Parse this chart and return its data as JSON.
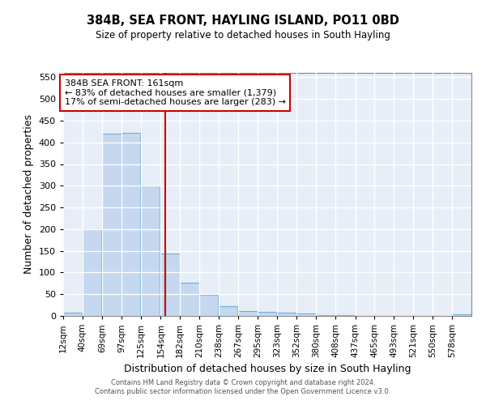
{
  "title": "384B, SEA FRONT, HAYLING ISLAND, PO11 0BD",
  "subtitle": "Size of property relative to detached houses in South Hayling",
  "xlabel": "Distribution of detached houses by size in South Hayling",
  "ylabel": "Number of detached properties",
  "footer1": "Contains HM Land Registry data © Crown copyright and database right 2024.",
  "footer2": "Contains public sector information licensed under the Open Government Licence v3.0.",
  "annotation_title": "384B SEA FRONT: 161sqm",
  "annotation_line1": "← 83% of detached houses are smaller (1,379)",
  "annotation_line2": "17% of semi-detached houses are larger (283) →",
  "bar_color": "#c5d8f0",
  "bar_edge_color": "#6baed6",
  "vline_color": "#cc0000",
  "annotation_box_edgecolor": "#cc0000",
  "background_color": "#e8eef8",
  "grid_color": "#ffffff",
  "categories": [
    "12sqm",
    "40sqm",
    "69sqm",
    "97sqm",
    "125sqm",
    "154sqm",
    "182sqm",
    "210sqm",
    "238sqm",
    "267sqm",
    "295sqm",
    "323sqm",
    "352sqm",
    "380sqm",
    "408sqm",
    "437sqm",
    "465sqm",
    "493sqm",
    "521sqm",
    "550sqm",
    "578sqm"
  ],
  "bin_starts": [
    12,
    40,
    69,
    97,
    125,
    154,
    182,
    210,
    238,
    267,
    295,
    323,
    352,
    380,
    408,
    437,
    465,
    493,
    521,
    550,
    578
  ],
  "bin_width": 28,
  "values": [
    8,
    200,
    420,
    422,
    300,
    143,
    77,
    48,
    23,
    12,
    9,
    7,
    5,
    2,
    1,
    0,
    0,
    0,
    0,
    0,
    3
  ],
  "ylim": [
    0,
    560
  ],
  "yticks": [
    0,
    50,
    100,
    150,
    200,
    250,
    300,
    350,
    400,
    450,
    500,
    550
  ],
  "xlim_left": 12,
  "xlim_right": 606,
  "vline_x": 161
}
